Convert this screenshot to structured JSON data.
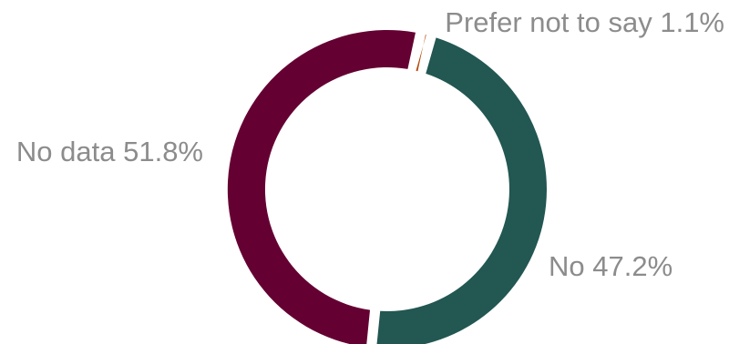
{
  "chart_data": {
    "type": "pie",
    "style": "donut",
    "slices": [
      {
        "label": "Prefer not to say",
        "value": 1.1,
        "display": "Prefer not to say 1.1%",
        "color": "#b34a0b"
      },
      {
        "label": "No",
        "value": 47.2,
        "display": "No 47.2%",
        "color": "#225752"
      },
      {
        "label": "No data",
        "value": 51.8,
        "display": "No data 51.8%",
        "color": "#650032"
      }
    ],
    "title": "",
    "legend": "none",
    "label_color": "#8c8c8c"
  }
}
